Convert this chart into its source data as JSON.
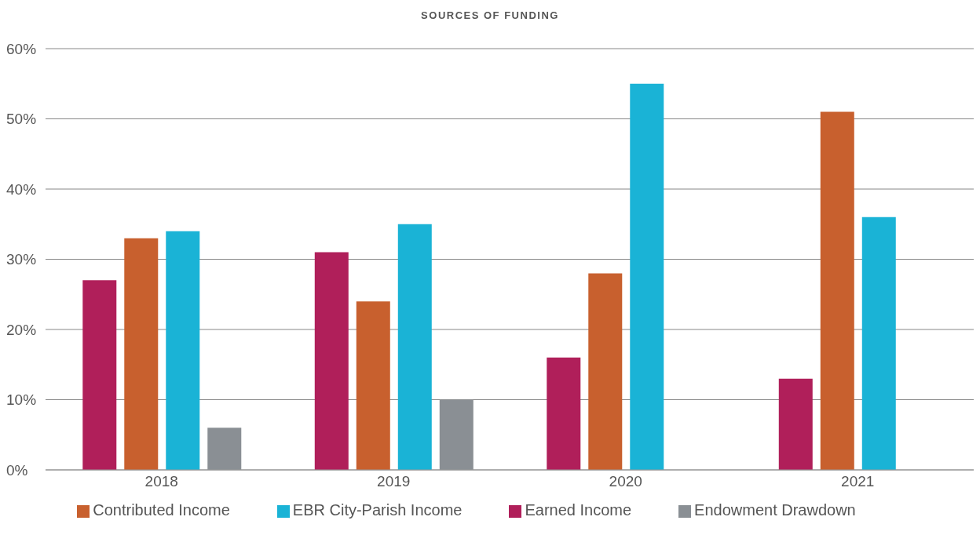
{
  "chart_data": {
    "type": "bar",
    "title": "SOURCES OF FUNDING",
    "categories": [
      "2018",
      "2019",
      "2020",
      "2021"
    ],
    "series": [
      {
        "name": "Earned Income",
        "color": "#b01f5a",
        "values": [
          27,
          31,
          16,
          13
        ]
      },
      {
        "name": "Contributed Income",
        "color": "#c8602e",
        "values": [
          33,
          24,
          28,
          51
        ]
      },
      {
        "name": "EBR City-Parish Income",
        "color": "#1ab3d6",
        "values": [
          34,
          35,
          55,
          36
        ]
      },
      {
        "name": "Endowment Drawdown",
        "color": "#8a8f94",
        "values": [
          6,
          10,
          null,
          null
        ]
      }
    ],
    "ylim": [
      0,
      60
    ],
    "yticks": [
      {
        "value": 0,
        "label": "0%"
      },
      {
        "value": 10,
        "label": "10%"
      },
      {
        "value": 20,
        "label": "20%"
      },
      {
        "value": 30,
        "label": "30%"
      },
      {
        "value": 40,
        "label": "40%"
      },
      {
        "value": 50,
        "label": "50%"
      },
      {
        "value": 60,
        "label": "60%"
      }
    ],
    "grid": "y",
    "legend": "bottom"
  }
}
